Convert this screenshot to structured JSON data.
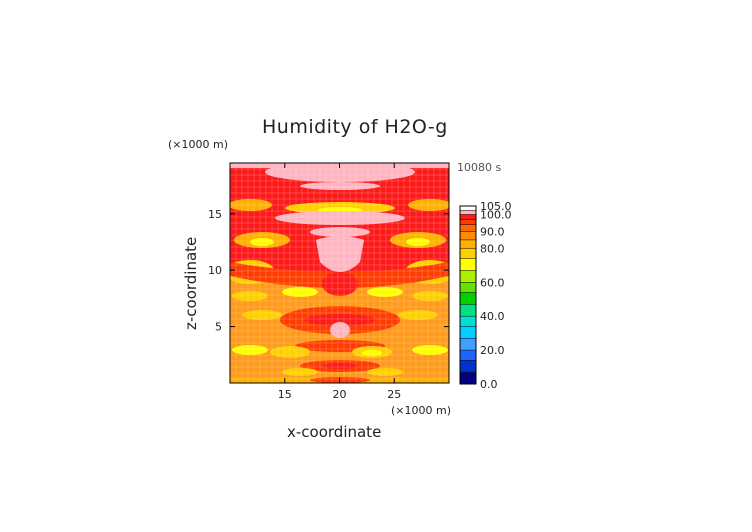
{
  "chart_data": {
    "type": "heatmap",
    "title": "Humidity of H2O-g",
    "xlabel": "x-coordinate",
    "ylabel": "z-coordinate",
    "x_unit": "(×1000 m)",
    "z_unit": "(×1000 m)",
    "time_label": "10080 s",
    "xlim": [
      10,
      30
    ],
    "ylim": [
      0,
      19.5
    ],
    "x_ticks": [
      15,
      20,
      25
    ],
    "y_ticks": [
      5,
      10,
      15
    ],
    "colorbar": {
      "levels": [
        0.0,
        20.0,
        40.0,
        60.0,
        80.0,
        90.0,
        100.0,
        105.0
      ],
      "labels": [
        "0.0",
        "20.0",
        "40.0",
        "60.0",
        "80.0",
        "90.0",
        "100.0",
        "105.0"
      ],
      "colors": [
        "#000080",
        "#0033cc",
        "#1e64ff",
        "#3fa0ff",
        "#00d0ff",
        "#00e0d0",
        "#00e080",
        "#00d000",
        "#66e000",
        "#aaee00",
        "#ffff00",
        "#ffd000",
        "#ffb000",
        "#ff8c00",
        "#ff6a00",
        "#ff3c00",
        "#ff1a1a",
        "#ffb6c1",
        "#ffffff"
      ]
    }
  }
}
